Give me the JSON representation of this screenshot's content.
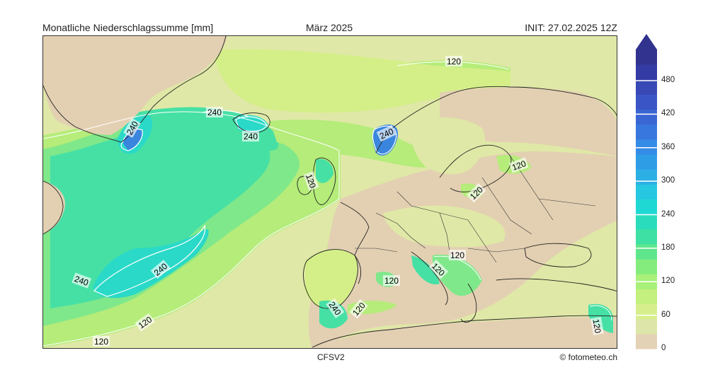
{
  "header": {
    "title_left": "Monatliche Niederschlagssumme [mm]",
    "title_center": "März 2025",
    "title_right": "INIT: 27.02.2025 12Z"
  },
  "footer": {
    "model": "CFSV2",
    "credit": "© fotometeo.ch"
  },
  "map": {
    "contour_labels": [
      "120",
      "240",
      "240",
      "240",
      "240",
      "120",
      "240",
      "120",
      "120",
      "120",
      "120",
      "120",
      "240",
      "240",
      "120",
      "120",
      "120",
      "120"
    ],
    "colors": {
      "land_dry": "#e3d0b2",
      "low": "#dfe8a6",
      "yellow_green": "#d4ef88",
      "light_green": "#b5ec7a",
      "green": "#7fe88a",
      "teal": "#46e0a5",
      "cyan": "#2ad9c8",
      "blue": "#3a86de",
      "dark_blue": "#3547a8"
    }
  },
  "colorbar": {
    "ticks": [
      "0",
      "60",
      "120",
      "180",
      "240",
      "300",
      "360",
      "420",
      "480"
    ],
    "colors": [
      "#e4d2b6",
      "#dde6a8",
      "#d6ef8c",
      "#c3f07e",
      "#a8f07a",
      "#84ec7d",
      "#5fe68c",
      "#3fe0a3",
      "#2bdcbc",
      "#20d8d3",
      "#26c7e0",
      "#2cb0e4",
      "#2f9de6",
      "#358ce6",
      "#3878de",
      "#3a66d4",
      "#3a56c6",
      "#3848b5",
      "#353ba4",
      "#31338f"
    ]
  }
}
